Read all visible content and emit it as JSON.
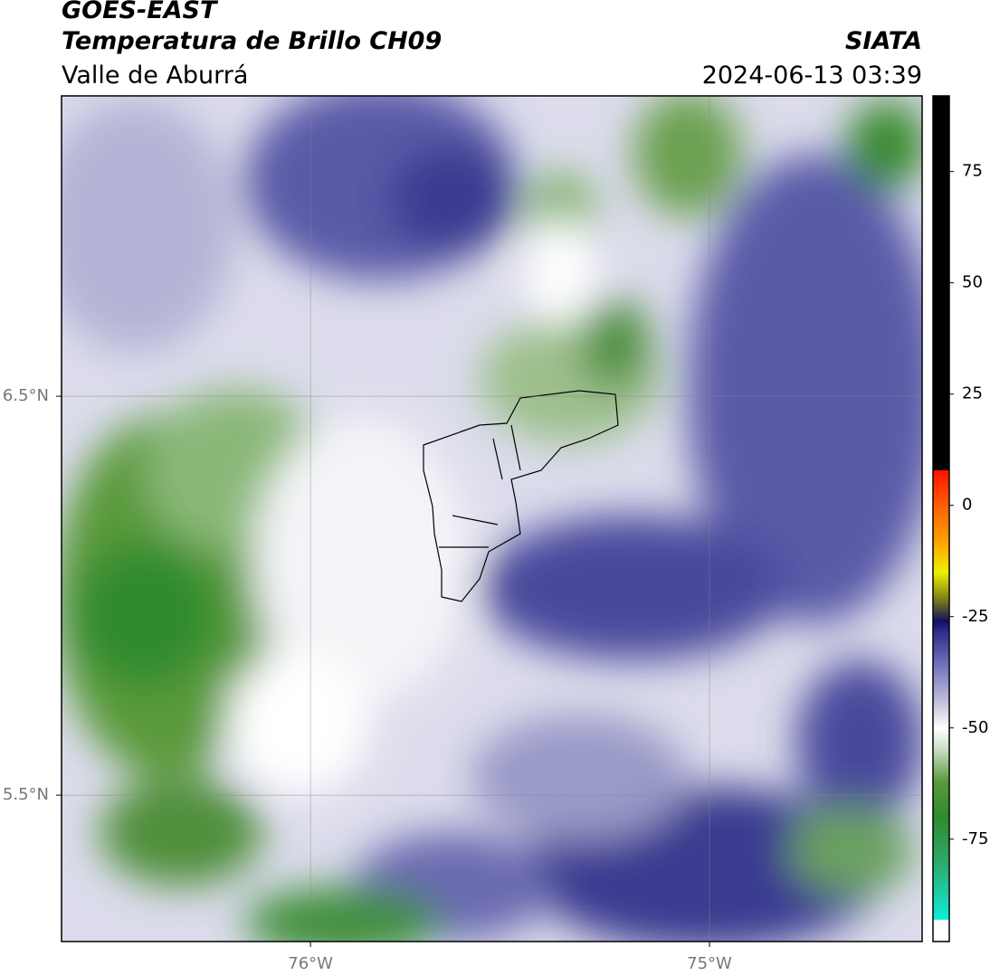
{
  "header": {
    "satellite": "GOES-EAST",
    "product": "Temperatura de Brillo CH09",
    "region": "Valle de Aburrá",
    "source": "SIATA",
    "timestamp": "2024-06-13 03:39"
  },
  "map": {
    "xlim": [
      -76.624,
      -74.467
    ],
    "ylim": [
      5.133,
      7.253
    ],
    "xticks": [
      {
        "value": -76,
        "label": "76°W"
      },
      {
        "value": -75,
        "label": "75°W"
      }
    ],
    "yticks": [
      {
        "value": 6.5,
        "label": "6.5°N"
      },
      {
        "value": 5.5,
        "label": "5.5°N"
      }
    ],
    "grid": true
  },
  "colorbar": {
    "lim": [
      -98,
      92
    ],
    "ticks": [
      -75,
      -50,
      -25,
      0,
      25,
      50,
      75
    ],
    "colorscale": [
      [
        -98,
        "#ffffff"
      ],
      [
        -93,
        "#ffffff"
      ],
      [
        -93,
        "#10ecd8"
      ],
      [
        -80,
        "#2ea86a"
      ],
      [
        -70,
        "#2e8b2e"
      ],
      [
        -62,
        "#5a9a3a"
      ],
      [
        -55,
        "#c8dcc0"
      ],
      [
        -50,
        "#ffffff"
      ],
      [
        -45,
        "#c8c8e0"
      ],
      [
        -35,
        "#6a6ab8"
      ],
      [
        -28,
        "#2a2a8a"
      ],
      [
        -26,
        "#101060"
      ],
      [
        -22,
        "#6a6a20"
      ],
      [
        -15,
        "#f0f000"
      ],
      [
        -8,
        "#ffa000"
      ],
      [
        0,
        "#ff6000"
      ],
      [
        8,
        "#ff1000"
      ],
      [
        8,
        "#000000"
      ],
      [
        92,
        "#000000"
      ]
    ]
  }
}
